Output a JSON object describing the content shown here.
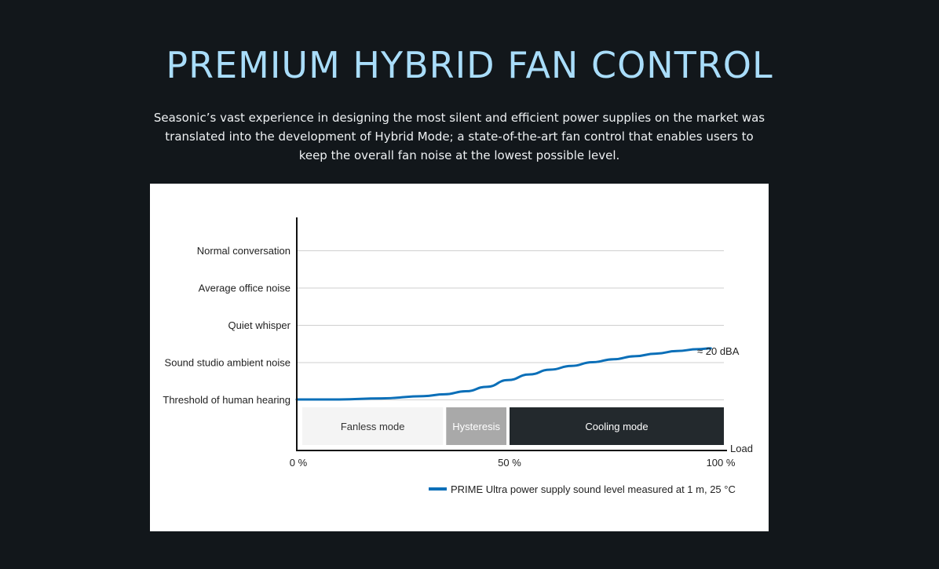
{
  "header": {
    "title": "PREMIUM HYBRID FAN CONTROL",
    "description": "Seasonic’s vast experience in designing the most silent and efficient power supplies on the market was translated into the development of Hybrid Mode; a state-of-the-art fan control that enables users to keep the overall fan noise at the lowest possible level."
  },
  "chart_data": {
    "type": "line",
    "title": "",
    "xlabel": "Load",
    "ylabel": "",
    "x_ticks": [
      "0 %",
      "50 %",
      "100 %"
    ],
    "xlim": [
      0,
      100
    ],
    "y_levels": [
      "Threshold of human hearing",
      "Sound studio ambient noise",
      "Quiet whisper",
      "Average office noise",
      "Normal conversation"
    ],
    "ylim": [
      0,
      5
    ],
    "grid": true,
    "modes": [
      {
        "label": "Fanless mode",
        "start": 0,
        "end": 35,
        "color": "#f4f4f4",
        "text_color": "#333333"
      },
      {
        "label": "Hysteresis",
        "start": 35,
        "end": 50,
        "color": "#a9a9a9",
        "text_color": "#ffffff"
      },
      {
        "label": "Cooling mode",
        "start": 50,
        "end": 100,
        "color": "#23292d",
        "text_color": "#ffffff"
      }
    ],
    "annotation": "≈ 20 dBA",
    "series": [
      {
        "name": "PRIME Ultra power supply sound level measured at 1 m, 25 °C",
        "color": "#0b6fb8",
        "x": [
          0,
          10,
          20,
          30,
          35,
          40,
          45,
          50,
          55,
          60,
          65,
          70,
          75,
          80,
          85,
          90,
          95,
          98
        ],
        "values": [
          0.0,
          0.0,
          0.03,
          0.09,
          0.14,
          0.22,
          0.34,
          0.52,
          0.67,
          0.8,
          0.9,
          1.0,
          1.08,
          1.16,
          1.23,
          1.3,
          1.35,
          1.37
        ]
      }
    ],
    "legend_position": "bottom-right"
  }
}
